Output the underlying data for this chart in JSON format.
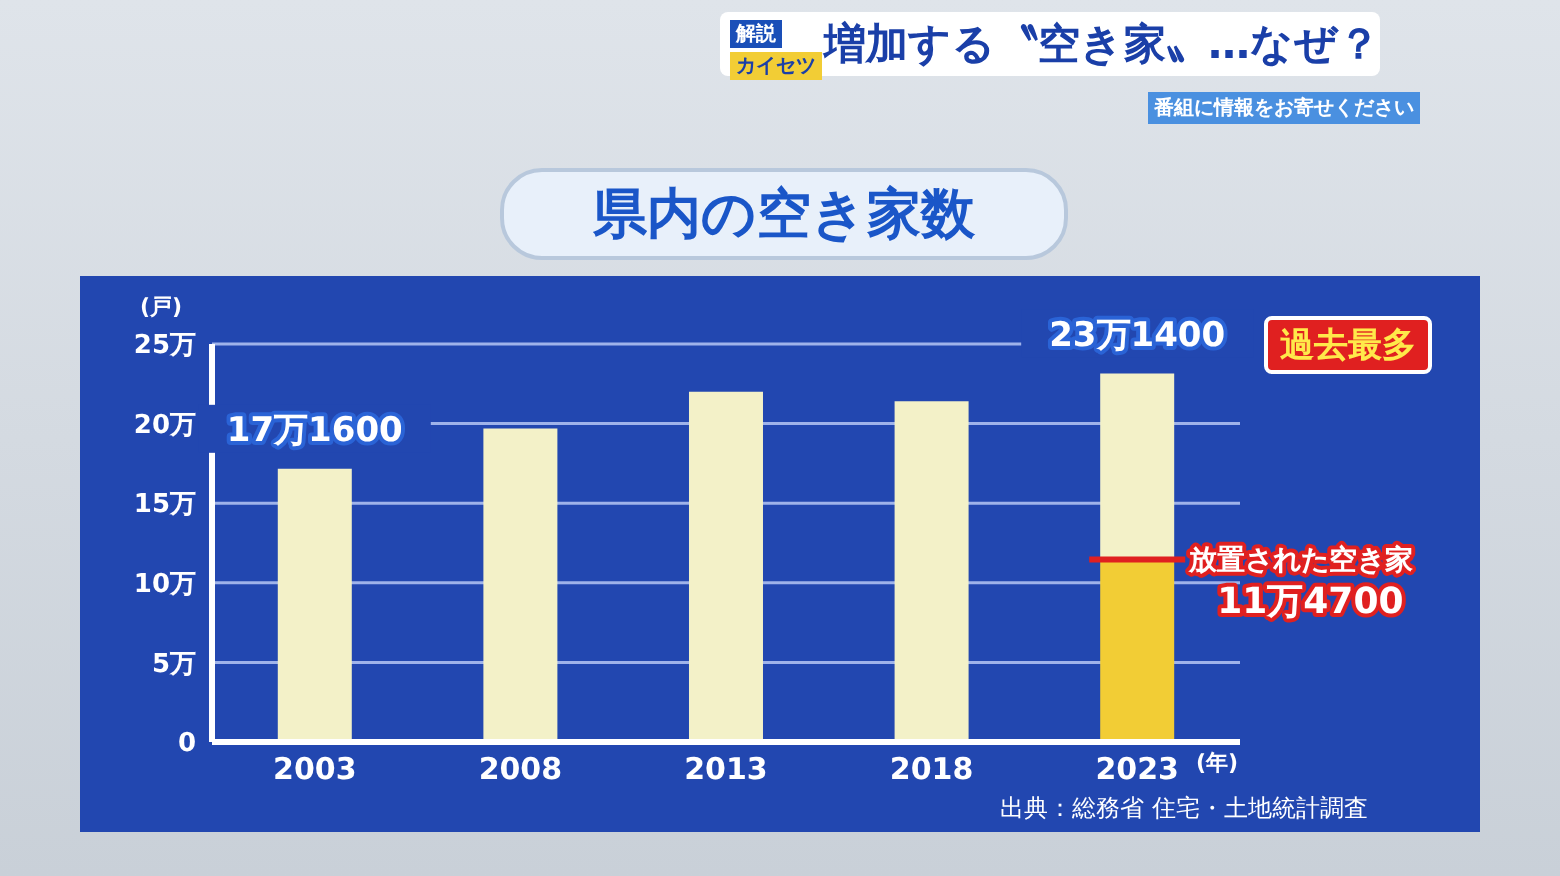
{
  "chart_data": {
    "type": "bar",
    "title": "県内の空き家数",
    "ylabel": "(戸)",
    "xlabel": "(年)",
    "categories": [
      "2003",
      "2008",
      "2013",
      "2018",
      "2023"
    ],
    "stacked": true,
    "series": [
      {
        "name": "放置された空き家",
        "color": "#f2cd35",
        "values": [
          null,
          null,
          null,
          null,
          11.47
        ],
        "value_labels": [
          null,
          null,
          null,
          null,
          "11万4700"
        ]
      },
      {
        "color": "#f3f1c8",
        "values": [
          17.16,
          19.7,
          22.0,
          21.4,
          11.67
        ]
      }
    ],
    "totals": [
      "17万1600",
      null,
      null,
      null,
      "23万1400"
    ],
    "ylim": [
      0,
      25
    ],
    "yticks": [
      0,
      {
        "value": 5,
        "label": "5万"
      },
      {
        "value": 10,
        "label": "10万"
      },
      {
        "value": 15,
        "label": "15万"
      },
      {
        "value": 20,
        "label": "20万"
      },
      {
        "value": 25,
        "label": "25万"
      }
    ],
    "grid": "y",
    "legend": false,
    "annotations": [
      "増加する〝空き家〟…なぜ？",
      "番組に情報をお寄せください",
      "解説",
      "カイセツ",
      "出典：総務省 住宅・土地統計調査",
      "過去最多"
    ]
  }
}
